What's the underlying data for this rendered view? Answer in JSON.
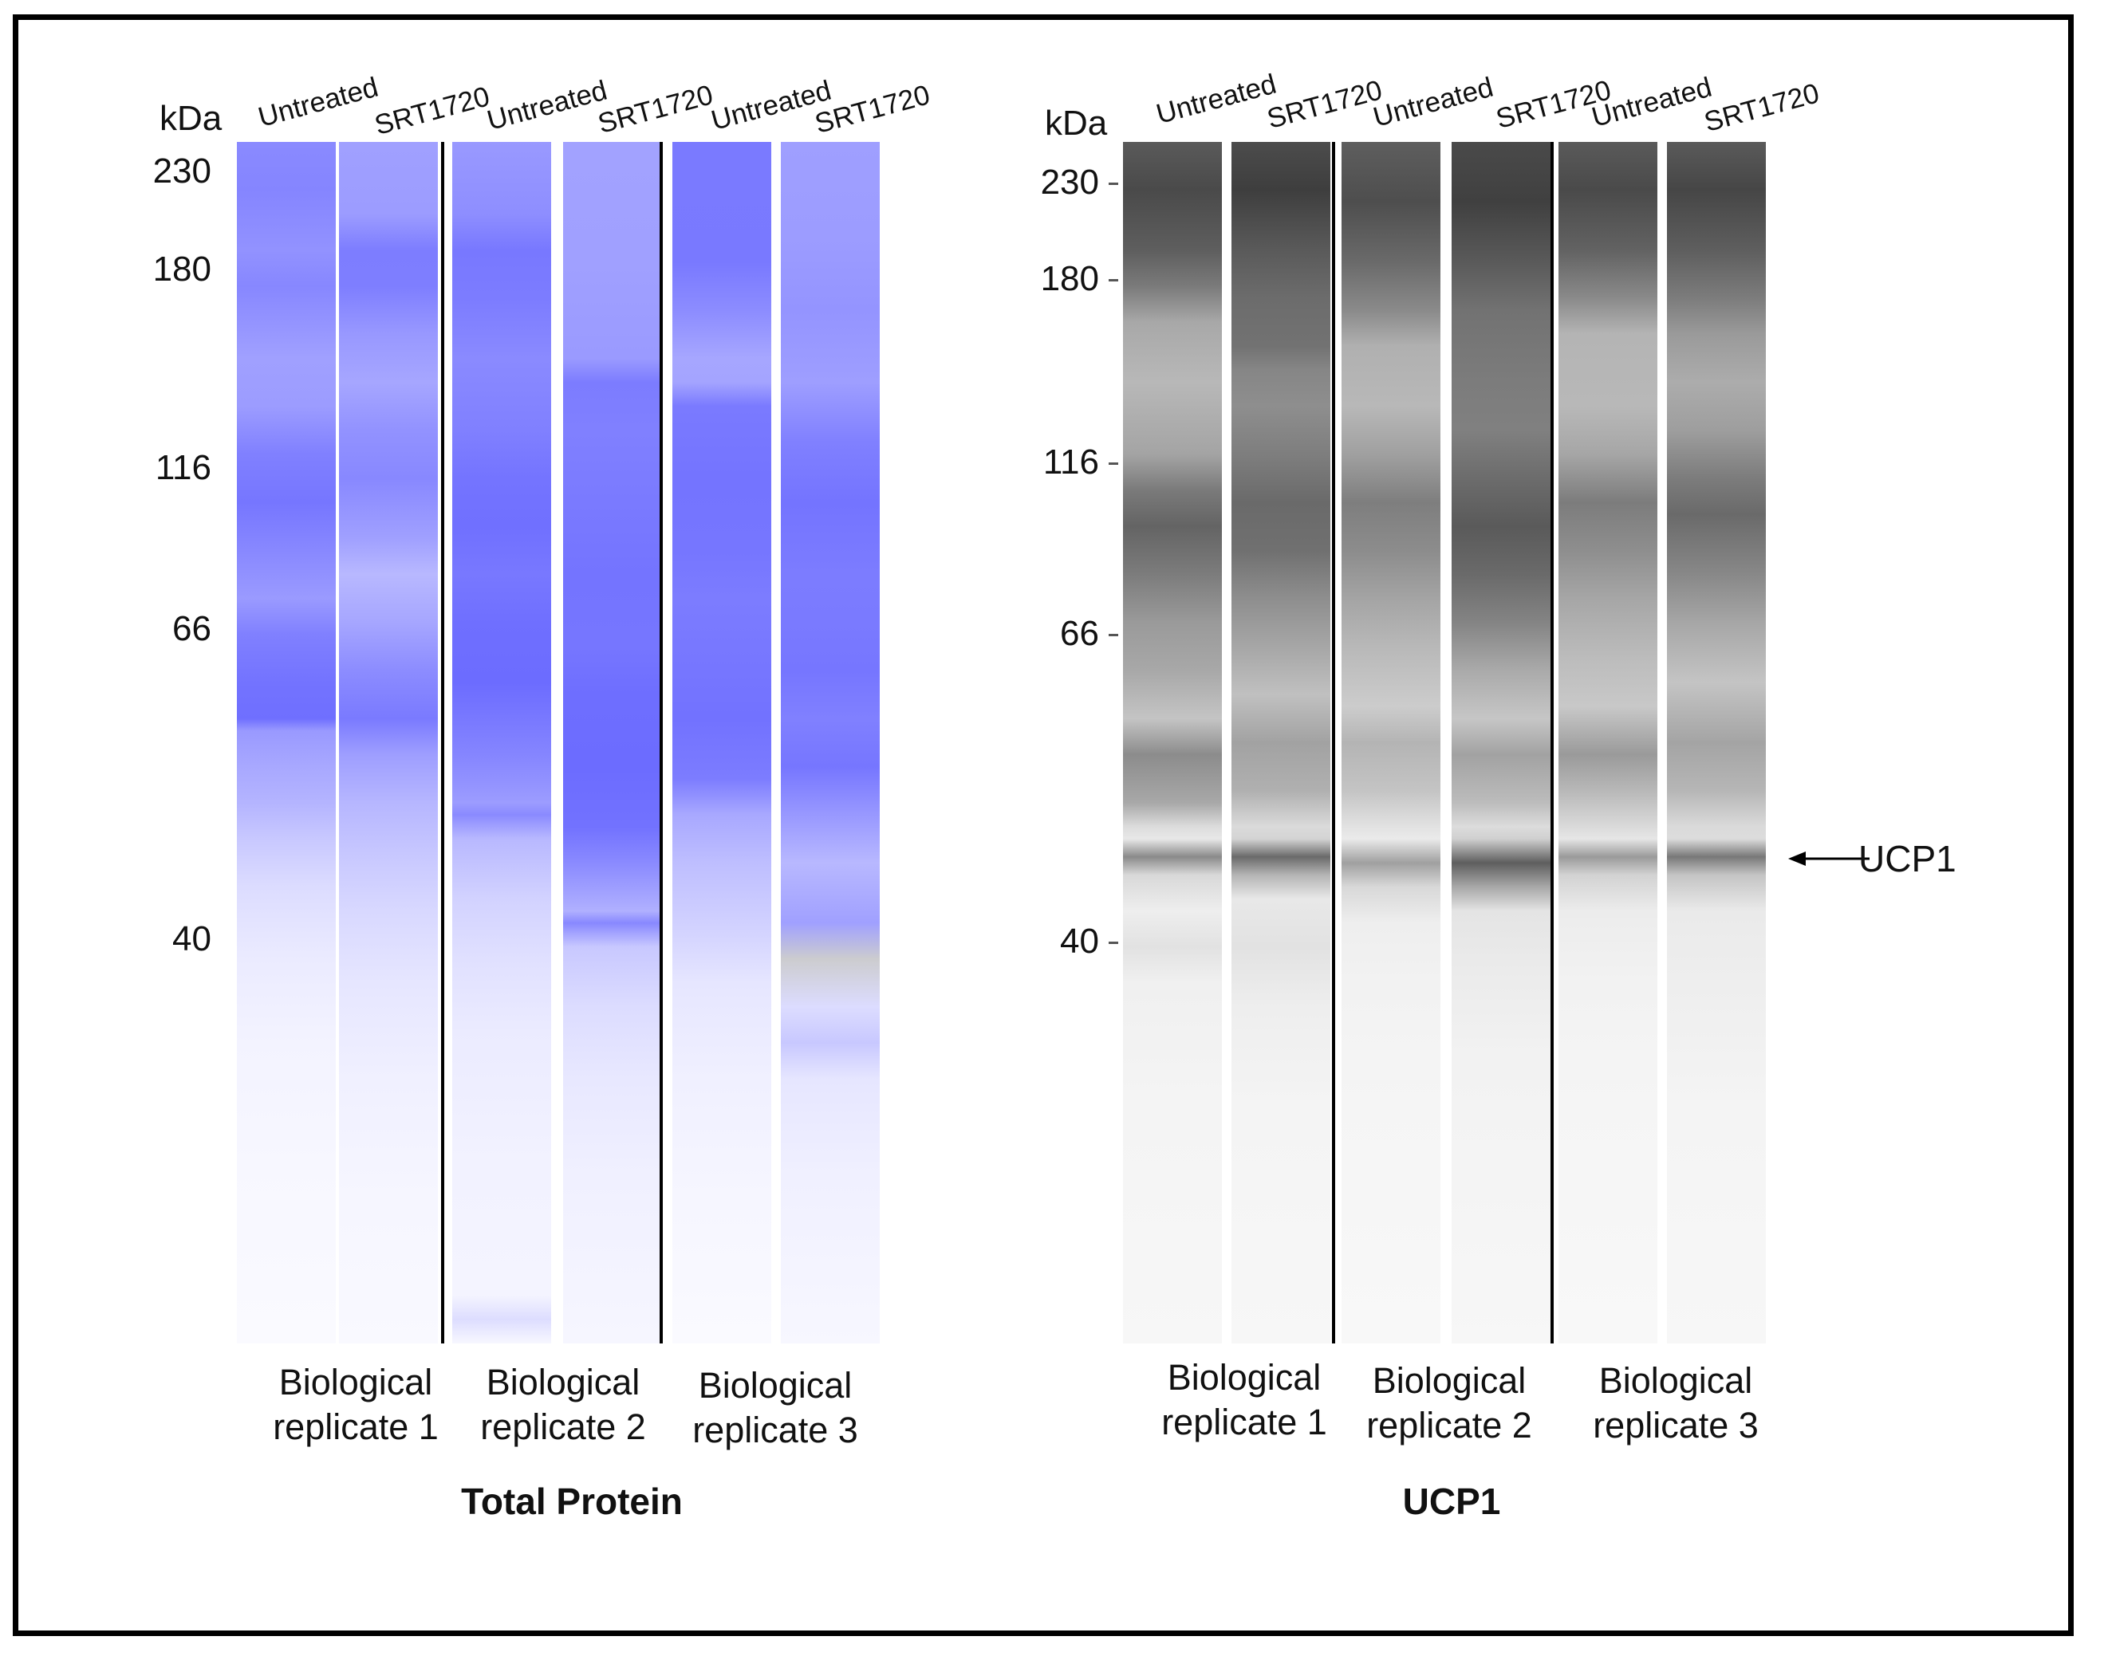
{
  "figure": {
    "panels": [
      {
        "id": "total-protein",
        "title": "Total Protein",
        "kda_label": "kDa",
        "mw_markers": [
          "230",
          "180",
          "116",
          "66",
          "40"
        ],
        "lane_labels": [
          "Untreated",
          "SRT1720",
          "Untreated",
          "SRT1720",
          "Untreated",
          "SRT1720"
        ],
        "replicates": [
          {
            "line1": "Biological",
            "line2": "replicate 1"
          },
          {
            "line1": "Biological",
            "line2": "replicate 2"
          },
          {
            "line1": "Biological",
            "line2": "replicate 3"
          }
        ],
        "color": "#7b7bff"
      },
      {
        "id": "ucp1",
        "title": "UCP1",
        "kda_label": "kDa",
        "mw_markers": [
          "230",
          "180",
          "116",
          "66",
          "40"
        ],
        "lane_labels": [
          "Untreated",
          "SRT1720",
          "Untreated",
          "SRT1720",
          "Untreated",
          "SRT1720"
        ],
        "replicates": [
          {
            "line1": "Biological",
            "line2": "replicate 1"
          },
          {
            "line1": "Biological",
            "line2": "replicate 2"
          },
          {
            "line1": "Biological",
            "line2": "replicate 3"
          }
        ],
        "band_annotation": "UCP1",
        "color": "#3a3a3a"
      }
    ]
  }
}
